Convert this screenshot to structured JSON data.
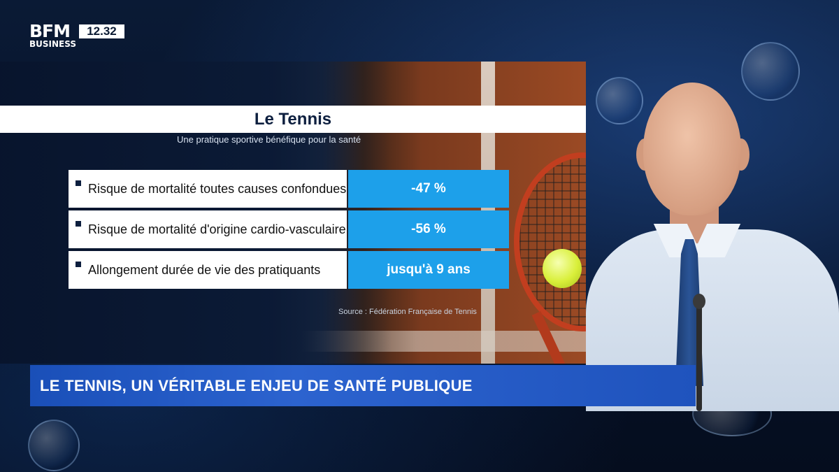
{
  "broadcast": {
    "logo_top": "BFM",
    "logo_bottom": "BUSINESS",
    "clock": "12.32"
  },
  "graphic": {
    "title": "Le Tennis",
    "subtitle": "Une pratique sportive bénéfique pour la santé",
    "rows": [
      {
        "label": "Risque de mortalité toutes causes confondues",
        "value": "-47 %"
      },
      {
        "label": "Risque de mortalité d'origine cardio-vasculaire",
        "value": "-56 %"
      },
      {
        "label": "Allongement durée de vie des pratiquants",
        "value": "jusqu'à 9 ans"
      }
    ],
    "source": "Source : Fédération Française de Tennis"
  },
  "lower_third": {
    "headline": "LE TENNIS, UN VÉRITABLE ENJEU DE SANTÉ PUBLIQUE"
  },
  "colors": {
    "value_cell": "#1da0ea",
    "lower_third": "#2c63cf",
    "title_bar": "#ffffff"
  }
}
